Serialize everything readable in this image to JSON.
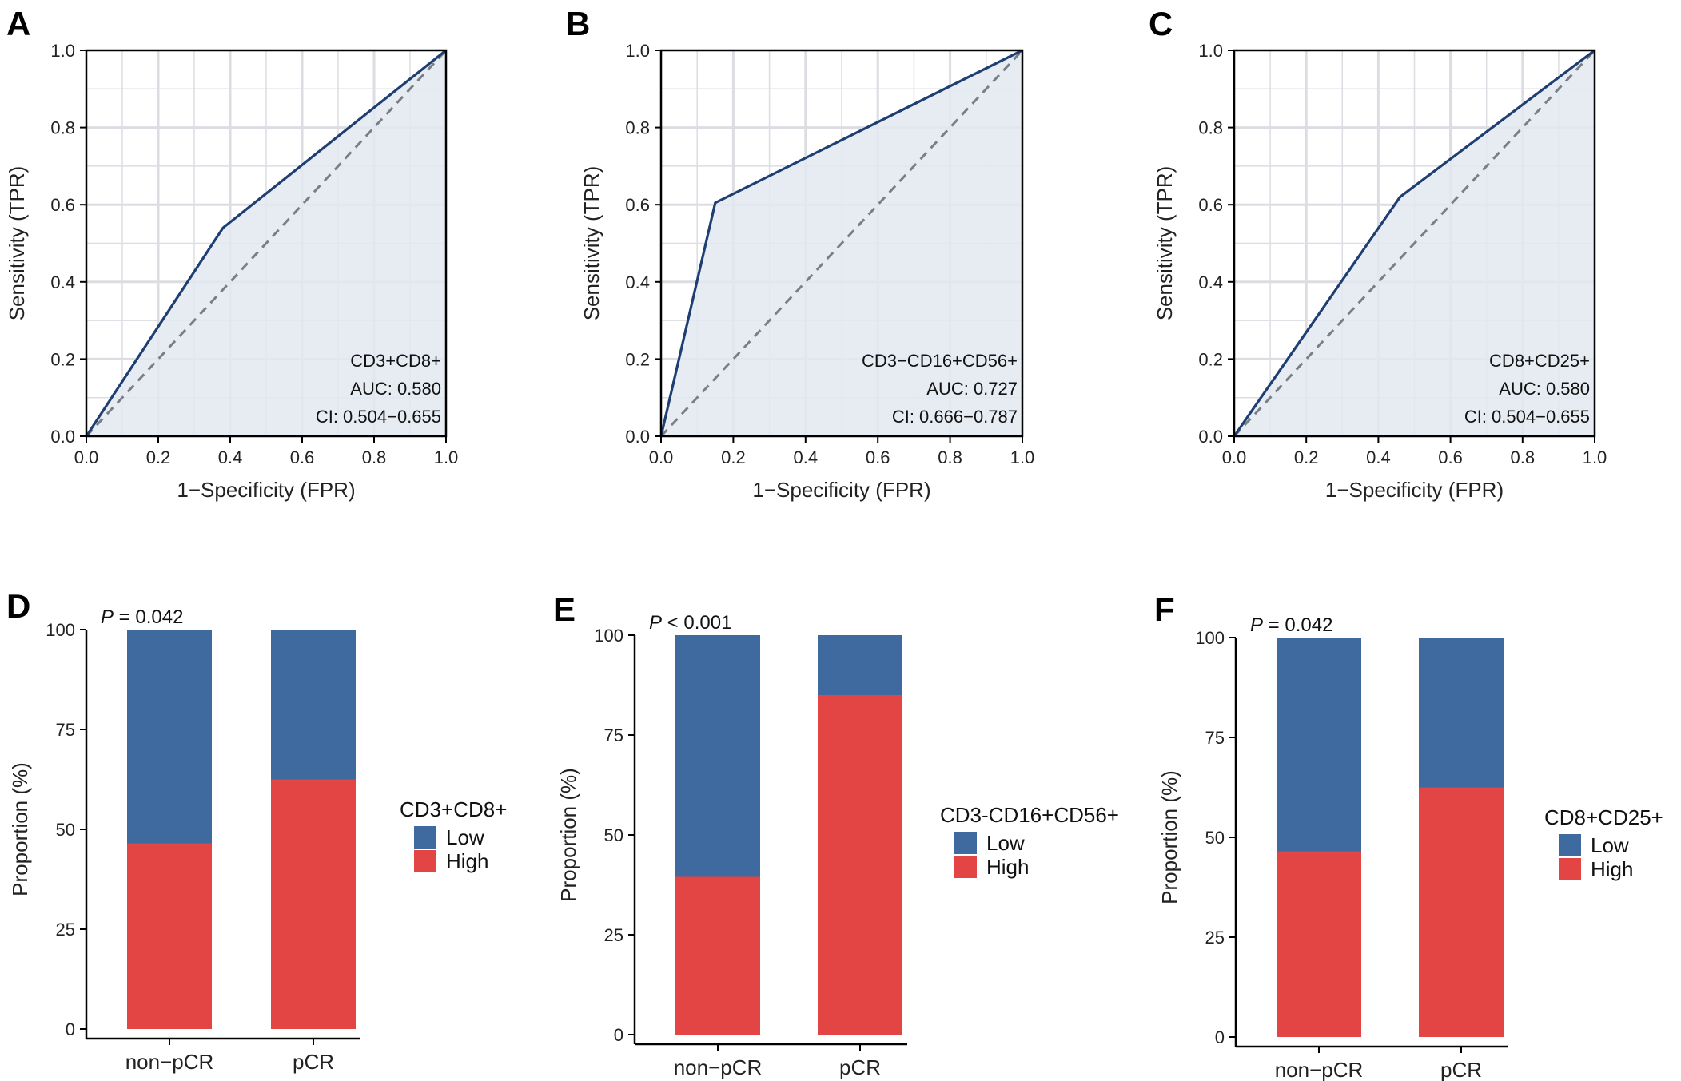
{
  "figure": {
    "panels": [
      "A",
      "B",
      "C",
      "D",
      "E",
      "F"
    ]
  },
  "colors": {
    "roc_line": "#1f3f73",
    "roc_fill": "#e3e9f1",
    "diagonal": "#7a7f87",
    "grid": "#dcdde2",
    "low": "#3e6aa0",
    "high": "#e34444"
  },
  "chart_data": [
    {
      "panel": "A",
      "type": "line",
      "subtype": "roc",
      "xlabel": "1−Specificity (FPR)",
      "ylabel": "Sensitivity (TPR)",
      "xlim": [
        0,
        1
      ],
      "ylim": [
        0,
        1
      ],
      "ticks": [
        "0.0",
        "0.2",
        "0.4",
        "0.6",
        "0.8",
        "1.0"
      ],
      "grid": true,
      "series": [
        {
          "name": "CD3+CD8+",
          "x": [
            0,
            0.38,
            1
          ],
          "y": [
            0,
            0.54,
            1
          ]
        }
      ],
      "reference_line": {
        "x": [
          0,
          1
        ],
        "y": [
          0,
          1
        ],
        "style": "dashed"
      },
      "annotations": [
        "CD3+CD8+",
        "AUC: 0.580",
        "CI: 0.504−0.655"
      ]
    },
    {
      "panel": "B",
      "type": "line",
      "subtype": "roc",
      "xlabel": "1−Specificity (FPR)",
      "ylabel": "Sensitivity (TPR)",
      "xlim": [
        0,
        1
      ],
      "ylim": [
        0,
        1
      ],
      "ticks": [
        "0.0",
        "0.2",
        "0.4",
        "0.6",
        "0.8",
        "1.0"
      ],
      "grid": true,
      "series": [
        {
          "name": "CD3−CD16+CD56+",
          "x": [
            0,
            0.15,
            1
          ],
          "y": [
            0,
            0.605,
            1
          ]
        }
      ],
      "reference_line": {
        "x": [
          0,
          1
        ],
        "y": [
          0,
          1
        ],
        "style": "dashed"
      },
      "annotations": [
        "CD3−CD16+CD56+",
        "AUC: 0.727",
        "CI: 0.666−0.787"
      ]
    },
    {
      "panel": "C",
      "type": "line",
      "subtype": "roc",
      "xlabel": "1−Specificity (FPR)",
      "ylabel": "Sensitivity (TPR)",
      "xlim": [
        0,
        1
      ],
      "ylim": [
        0,
        1
      ],
      "ticks": [
        "0.0",
        "0.2",
        "0.4",
        "0.6",
        "0.8",
        "1.0"
      ],
      "grid": true,
      "series": [
        {
          "name": "CD8+CD25+",
          "x": [
            0,
            0.46,
            1
          ],
          "y": [
            0,
            0.62,
            1
          ]
        }
      ],
      "reference_line": {
        "x": [
          0,
          1
        ],
        "y": [
          0,
          1
        ],
        "style": "dashed"
      },
      "annotations": [
        "CD8+CD25+",
        "AUC: 0.580",
        "CI: 0.504−0.655"
      ]
    },
    {
      "panel": "D",
      "type": "bar",
      "subtype": "stacked",
      "categories": [
        "non−pCR",
        "pCR"
      ],
      "ylabel": "Proportion (%)",
      "ylim": [
        0,
        100
      ],
      "yticks": [
        "0",
        "25",
        "50",
        "75",
        "100"
      ],
      "series": [
        {
          "name": "High",
          "values": [
            46.5,
            62.5
          ]
        },
        {
          "name": "Low",
          "values": [
            53.5,
            37.5
          ]
        }
      ],
      "legend_title": "CD3+CD8+",
      "legend": [
        "Low",
        "High"
      ],
      "legend_position": "right",
      "p_label": "P",
      "p_value": " = 0.042"
    },
    {
      "panel": "E",
      "type": "bar",
      "subtype": "stacked",
      "categories": [
        "non−pCR",
        "pCR"
      ],
      "ylabel": "Proportion (%)",
      "ylim": [
        0,
        100
      ],
      "yticks": [
        "0",
        "25",
        "50",
        "75",
        "100"
      ],
      "series": [
        {
          "name": "High",
          "values": [
            39.5,
            85
          ]
        },
        {
          "name": "Low",
          "values": [
            60.5,
            15
          ]
        }
      ],
      "legend_title": "CD3-CD16+CD56+",
      "legend": [
        "Low",
        "High"
      ],
      "legend_position": "right",
      "p_label": "P",
      "p_value": " < 0.001"
    },
    {
      "panel": "F",
      "type": "bar",
      "subtype": "stacked",
      "categories": [
        "non−pCR",
        "pCR"
      ],
      "ylabel": "Proportion (%)",
      "ylim": [
        0,
        100
      ],
      "yticks": [
        "0",
        "25",
        "50",
        "75",
        "100"
      ],
      "series": [
        {
          "name": "High",
          "values": [
            46.5,
            62.5
          ]
        },
        {
          "name": "Low",
          "values": [
            53.5,
            37.5
          ]
        }
      ],
      "legend_title": "CD8+CD25+",
      "legend": [
        "Low",
        "High"
      ],
      "legend_position": "right",
      "p_label": "P",
      "p_value": " = 0.042"
    }
  ]
}
